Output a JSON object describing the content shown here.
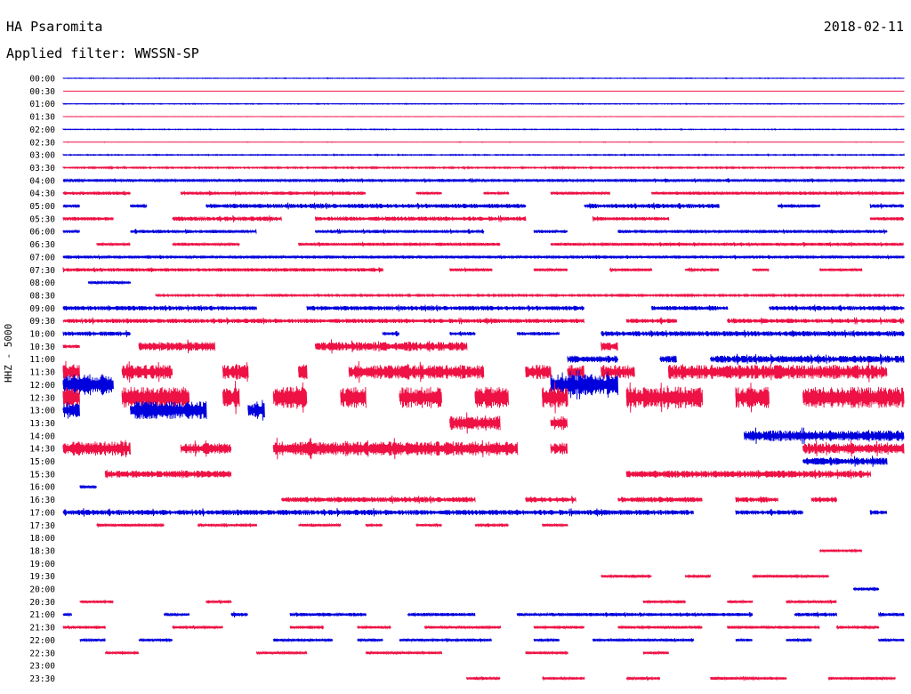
{
  "header": {
    "station": "HA Psaromita",
    "date": "2018-02-11",
    "filter": "Applied filter: WWSSN-SP"
  },
  "chart_data": {
    "type": "line",
    "title": "HA Psaromita",
    "date": "2018-02-11",
    "filter": "Applied filter: WWSSN-SP",
    "ylabel": "HHZ - 5000",
    "colors": [
      "#0000dd",
      "#ee1144"
    ],
    "rows": [
      "00:00",
      "00:30",
      "01:00",
      "01:30",
      "02:00",
      "02:30",
      "03:00",
      "03:30",
      "04:00",
      "04:30",
      "05:00",
      "05:30",
      "06:00",
      "06:30",
      "07:00",
      "07:30",
      "08:00",
      "08:30",
      "09:00",
      "09:30",
      "10:00",
      "10:30",
      "11:00",
      "11:30",
      "12:00",
      "12:30",
      "13:00",
      "13:30",
      "14:00",
      "14:30",
      "15:00",
      "15:30",
      "16:00",
      "16:30",
      "17:00",
      "17:30",
      "18:00",
      "18:30",
      "19:00",
      "19:30",
      "20:00",
      "20:30",
      "21:00",
      "21:30",
      "22:00",
      "22:30",
      "23:00",
      "23:30"
    ],
    "activity": [
      [
        [
          0,
          1,
          0.3
        ]
      ],
      [
        [
          0,
          1,
          0.1
        ]
      ],
      [
        [
          0,
          1,
          0.4
        ]
      ],
      [
        [
          0,
          1,
          0.15
        ]
      ],
      [
        [
          0,
          1,
          0.4
        ]
      ],
      [
        [
          0,
          1,
          0.2
        ]
      ],
      [
        [
          0,
          1,
          0.5
        ]
      ],
      [
        [
          0,
          1,
          0.8
        ]
      ],
      [
        [
          0,
          1,
          1.6
        ]
      ],
      [
        [
          0,
          0.08,
          1.8
        ],
        [
          0.14,
          0.36,
          1.8
        ],
        [
          0.42,
          0.45,
          1.5
        ],
        [
          0.5,
          0.53,
          1.4
        ],
        [
          0.58,
          0.65,
          1.6
        ],
        [
          0.7,
          1,
          1.8
        ]
      ],
      [
        [
          0,
          0.02,
          2
        ],
        [
          0.08,
          0.1,
          2
        ],
        [
          0.17,
          0.55,
          2.5
        ],
        [
          0.62,
          0.78,
          2.5
        ],
        [
          0.85,
          0.9,
          2
        ],
        [
          0.96,
          1,
          2
        ]
      ],
      [
        [
          0,
          0.06,
          2
        ],
        [
          0.13,
          0.26,
          2.5
        ],
        [
          0.3,
          0.55,
          2.5
        ],
        [
          0.63,
          0.72,
          2
        ],
        [
          0.96,
          1,
          2
        ]
      ],
      [
        [
          0,
          0.02,
          1.8
        ],
        [
          0.08,
          0.23,
          1.8
        ],
        [
          0.3,
          0.5,
          1.8
        ],
        [
          0.56,
          0.6,
          1.8
        ],
        [
          0.66,
          0.98,
          1.8
        ]
      ],
      [
        [
          0.04,
          0.08,
          1.5
        ],
        [
          0.13,
          0.21,
          1.6
        ],
        [
          0.28,
          0.52,
          1.7
        ],
        [
          0.58,
          1,
          1.7
        ]
      ],
      [
        [
          0,
          1,
          1.6
        ]
      ],
      [
        [
          0,
          0.38,
          2
        ],
        [
          0.46,
          0.51,
          1.8
        ],
        [
          0.56,
          0.6,
          1.6
        ],
        [
          0.65,
          0.7,
          1.6
        ],
        [
          0.74,
          0.78,
          1.6
        ],
        [
          0.82,
          0.84,
          1.6
        ],
        [
          0.9,
          0.95,
          1.6
        ]
      ],
      [
        [
          0.03,
          0.08,
          1.5
        ]
      ],
      [
        [
          0.11,
          1,
          1
        ]
      ],
      [
        [
          0,
          0.23,
          2.5
        ],
        [
          0.29,
          0.62,
          2.5
        ],
        [
          0.7,
          0.79,
          2.5
        ],
        [
          0.84,
          1,
          2.5
        ]
      ],
      [
        [
          0,
          0.62,
          2.5
        ],
        [
          0.67,
          0.73,
          2.5
        ],
        [
          0.79,
          1,
          2.5
        ]
      ],
      [
        [
          0,
          0.08,
          2.5
        ],
        [
          0.38,
          0.4,
          2
        ],
        [
          0.46,
          0.49,
          2
        ],
        [
          0.54,
          0.59,
          2
        ],
        [
          0.64,
          1,
          3
        ]
      ],
      [
        [
          0,
          0.02,
          2
        ],
        [
          0.09,
          0.18,
          5
        ],
        [
          0.3,
          0.48,
          5
        ],
        [
          0.64,
          0.66,
          5
        ]
      ],
      [
        [
          0.6,
          0.66,
          4
        ],
        [
          0.71,
          0.73,
          4
        ],
        [
          0.77,
          1,
          4
        ]
      ],
      [
        [
          0,
          0.02,
          8
        ],
        [
          0.07,
          0.13,
          8
        ],
        [
          0.19,
          0.22,
          8
        ],
        [
          0.28,
          0.29,
          8
        ],
        [
          0.34,
          0.5,
          8
        ],
        [
          0.55,
          0.58,
          8
        ],
        [
          0.6,
          0.62,
          8
        ],
        [
          0.64,
          0.68,
          8
        ],
        [
          0.72,
          0.98,
          8
        ]
      ],
      [
        [
          0,
          0.06,
          12
        ],
        [
          0.58,
          0.66,
          12
        ]
      ],
      [
        [
          0,
          0.02,
          12
        ],
        [
          0.07,
          0.15,
          12
        ],
        [
          0.19,
          0.21,
          12
        ],
        [
          0.25,
          0.29,
          12
        ],
        [
          0.33,
          0.36,
          12
        ],
        [
          0.4,
          0.45,
          12
        ],
        [
          0.49,
          0.53,
          12
        ],
        [
          0.57,
          0.6,
          12
        ],
        [
          0.67,
          0.76,
          12
        ],
        [
          0.8,
          0.84,
          12
        ],
        [
          0.88,
          1,
          12
        ]
      ],
      [
        [
          0,
          0.02,
          8
        ],
        [
          0.08,
          0.17,
          10
        ],
        [
          0.22,
          0.24,
          8
        ]
      ],
      [
        [
          0.46,
          0.52,
          8
        ],
        [
          0.58,
          0.6,
          8
        ]
      ],
      [
        [
          0.81,
          1,
          6
        ]
      ],
      [
        [
          0,
          0.08,
          8
        ],
        [
          0.14,
          0.2,
          6
        ],
        [
          0.25,
          0.54,
          8
        ],
        [
          0.58,
          0.6,
          6
        ],
        [
          0.88,
          1,
          6
        ]
      ],
      [
        [
          0.88,
          0.98,
          4
        ]
      ],
      [
        [
          0.05,
          0.2,
          4
        ],
        [
          0.67,
          0.96,
          4
        ]
      ],
      [
        [
          0.02,
          0.04,
          2
        ]
      ],
      [
        [
          0.26,
          0.49,
          3
        ],
        [
          0.55,
          0.61,
          3
        ],
        [
          0.66,
          0.76,
          3
        ],
        [
          0.8,
          0.85,
          3
        ],
        [
          0.89,
          0.92,
          3
        ]
      ],
      [
        [
          0,
          0.75,
          3
        ],
        [
          0.8,
          0.88,
          2.5
        ],
        [
          0.96,
          0.98,
          2.5
        ]
      ],
      [
        [
          0.04,
          0.12,
          1.6
        ],
        [
          0.16,
          0.23,
          1.4
        ],
        [
          0.28,
          0.33,
          1.4
        ],
        [
          0.36,
          0.38,
          1.4
        ],
        [
          0.42,
          0.45,
          1.4
        ],
        [
          0.49,
          0.53,
          1.4
        ],
        [
          0.57,
          0.6,
          1.4
        ]
      ],
      [],
      [
        [
          0.9,
          0.95,
          1.2
        ]
      ],
      [],
      [
        [
          0.64,
          0.7,
          1.5
        ],
        [
          0.74,
          0.77,
          1.5
        ],
        [
          0.82,
          0.91,
          1.5
        ]
      ],
      [
        [
          0.94,
          0.97,
          1.8
        ]
      ],
      [
        [
          0.02,
          0.06,
          1.5
        ],
        [
          0.17,
          0.2,
          1.5
        ],
        [
          0.69,
          0.74,
          1.5
        ],
        [
          0.79,
          0.82,
          1.5
        ],
        [
          0.86,
          0.92,
          1.5
        ]
      ],
      [
        [
          0,
          0.01,
          1.5
        ],
        [
          0.12,
          0.15,
          1.5
        ],
        [
          0.2,
          0.22,
          2
        ],
        [
          0.27,
          0.36,
          1.8
        ],
        [
          0.41,
          0.49,
          1.8
        ],
        [
          0.54,
          0.82,
          1.8
        ],
        [
          0.87,
          0.92,
          2
        ],
        [
          0.97,
          1,
          1.8
        ]
      ],
      [
        [
          0,
          0.05,
          1.5
        ],
        [
          0.13,
          0.19,
          1.5
        ],
        [
          0.27,
          0.31,
          1.5
        ],
        [
          0.35,
          0.39,
          1.5
        ],
        [
          0.43,
          0.52,
          1.5
        ],
        [
          0.56,
          0.62,
          1.5
        ],
        [
          0.66,
          0.76,
          1.5
        ],
        [
          0.79,
          0.9,
          1.5
        ],
        [
          0.92,
          0.97,
          1.5
        ]
      ],
      [
        [
          0.02,
          0.05,
          1.5
        ],
        [
          0.09,
          0.13,
          1.5
        ],
        [
          0.25,
          0.32,
          1.5
        ],
        [
          0.35,
          0.38,
          1.5
        ],
        [
          0.4,
          0.51,
          1.5
        ],
        [
          0.56,
          0.59,
          1.5
        ],
        [
          0.63,
          0.75,
          1.5
        ],
        [
          0.8,
          0.82,
          1.5
        ],
        [
          0.86,
          0.89,
          1.5
        ],
        [
          0.97,
          1,
          1.5
        ]
      ],
      [
        [
          0.05,
          0.09,
          1.5
        ],
        [
          0.23,
          0.29,
          1.5
        ],
        [
          0.36,
          0.45,
          1.5
        ],
        [
          0.55,
          0.6,
          1.5
        ],
        [
          0.69,
          0.72,
          1.5
        ]
      ],
      [],
      [
        [
          0.48,
          0.52,
          1.5
        ],
        [
          0.57,
          0.62,
          1.5
        ],
        [
          0.67,
          0.71,
          1.5
        ],
        [
          0.77,
          0.86,
          1.5
        ],
        [
          0.91,
          0.99,
          1.5
        ]
      ]
    ]
  }
}
